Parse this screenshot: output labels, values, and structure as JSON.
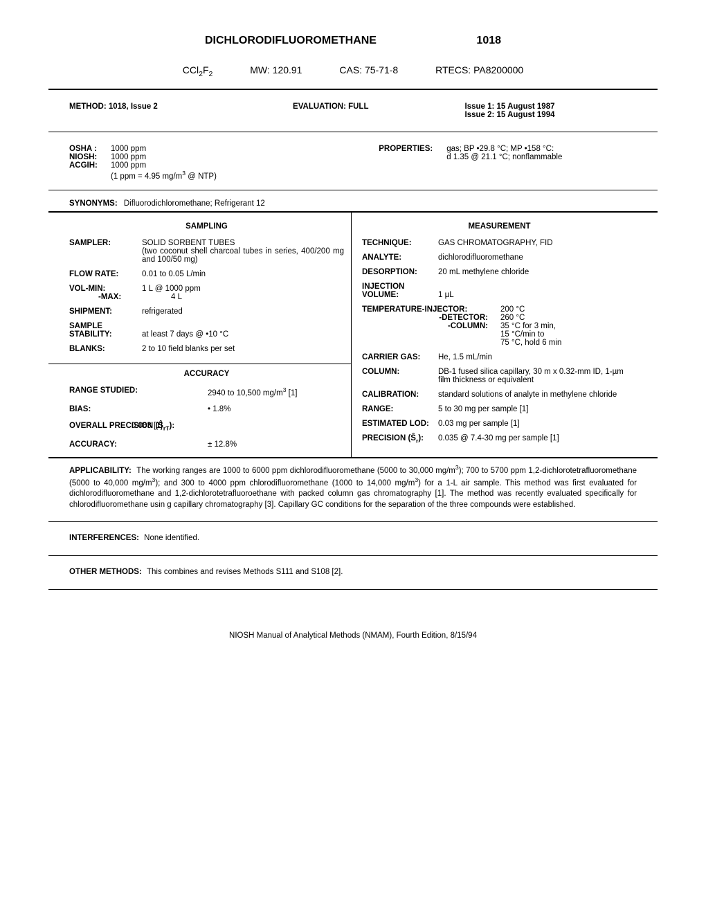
{
  "header": {
    "title": "DICHLORODIFLUOROMETHANE",
    "number": "1018",
    "formula_html": "CCl<sub>2</sub>F<sub>2</sub>",
    "mw": "MW:  120.91",
    "cas": "CAS: 75-71-8",
    "rtecs": "RTECS: PA8200000"
  },
  "method_row": {
    "method": "METHOD: 1018, Issue 2",
    "evaluation": "EVALUATION:  FULL",
    "issue1": "Issue 1:  15 August 1987",
    "issue2": "Issue 2:  15 August 1994"
  },
  "limits": {
    "osha_label": "OSHA :",
    "osha_val": "1000 ppm",
    "niosh_label": "NIOSH:",
    "niosh_val": "1000 ppm",
    "acgih_label": "ACGIH:",
    "acgih_val": "1000 ppm",
    "conv_html": "(1 ppm = 4.95 mg/m<sup>3</sup> @ NTP)"
  },
  "properties": {
    "label": "PROPERTIES:",
    "line1": "gas; BP •29.8 °C; MP •158 °C:",
    "line2": "d 1.35 @ 21.1 °C; nonflammable"
  },
  "synonyms": {
    "label": "SYNONYMS:",
    "value": "Difluorodichloromethane; Refrigerant 12"
  },
  "sampling": {
    "head": "SAMPLING",
    "sampler_k": "SAMPLER:",
    "sampler_v": "SOLID SORBENT TUBES",
    "sampler_v2": "(two coconut shell charcoal tubes in series, 400/200 mg and 100/50 mg)",
    "flow_k": "FLOW RATE:",
    "flow_v": "0.01 to 0.05 L/min",
    "volmin_k": "VOL-MIN:",
    "volmin_v": "1 L @ 1000 ppm",
    "volmax_k": "-MAX:",
    "volmax_v": "4 L",
    "ship_k": "SHIPMENT:",
    "ship_v": "refrigerated",
    "stab_k1": "SAMPLE",
    "stab_k2": "STABILITY:",
    "stab_v": "at least 7 days @ •10 °C",
    "blanks_k": "BLANKS:",
    "blanks_v": "2 to 10 field blanks per set"
  },
  "accuracy": {
    "head": "ACCURACY",
    "range_k": "RANGE STUDIED:",
    "range_v_html": "2940 to 10,500 mg/m<sup>3</sup> [1]",
    "bias_k": "BIAS:",
    "bias_v": "• 1.8%",
    "prec_k_html": "OVERALL PRECISION (Ŝ<sub>rT</sub>):",
    "prec_v": "0.063 [1]",
    "acc_k": "ACCURACY:",
    "acc_v": "± 12.8%"
  },
  "measurement": {
    "head": "MEASUREMENT",
    "tech_k": "TECHNIQUE:",
    "tech_v": "GAS CHROMATOGRAPHY, FID",
    "analyte_k": "ANALYTE:",
    "analyte_v": "dichlorodifluoromethane",
    "desorp_k": "DESORPTION:",
    "desorp_v": "20 mL methylene chloride",
    "inj_k1": "INJECTION",
    "inj_k2": "VOLUME:",
    "inj_v": "1 µL",
    "temp_inj_k": "TEMPERATURE-INJECTOR:",
    "temp_inj_v": "200 °C",
    "temp_det_k": "-DETECTOR:",
    "temp_det_v": "260 °C",
    "temp_col_k": "-COLUMN:",
    "temp_col_v1": "35 °C for 3 min,",
    "temp_col_v2": "15 °C/min to",
    "temp_col_v3": "75 °C, hold 6 min",
    "carrier_k": "CARRIER GAS:",
    "carrier_v": "He, 1.5 mL/min",
    "col_k": "COLUMN:",
    "col_v": "DB-1 fused silica capillary, 30 m x 0.32-mm ID, 1-µm film thickness or equivalent",
    "cal_k": "CALIBRATION:",
    "cal_v": "standard solutions of analyte in methylene chloride",
    "range_k": "RANGE:",
    "range_v": "5 to 30 mg per sample [1]",
    "lod_k": "ESTIMATED LOD:",
    "lod_v": "0.03 mg per sample [1]",
    "prec_k_html": "PRECISION (Ŝ<sub>r</sub>):",
    "prec_v": "0.035 @ 7.4-30 mg per sample [1]"
  },
  "applicability": {
    "label": "APPLICABILITY:",
    "text_html": "The working ranges are 1000 to 6000 ppm dichlorodifluoromethane (5000 to 30,000 mg/m<sup>3</sup>); 700 to 5700 ppm 1,2-dichlorotetrafluoromethane (5000 to 40,000 mg/m<sup>3</sup>); and 300 to 4000 ppm chlorodifluoromethane (1000 to 14,000 mg/m<sup>3</sup>) for a 1-L air sample.  This method was first evaluated for dichlorodifluoromethane and 1,2-dichlorotetrafluoroethane with packed column gas chromatography [1].  The method was recently evaluated specifically for chlorodifluoromethane usin g capillary chromatography [3].  Capillary GC conditions for the separation of the three compounds were established."
  },
  "interferences": {
    "label": "INTERFERENCES:",
    "text": "None identified."
  },
  "other_methods": {
    "label": "OTHER METHODS:",
    "text": "This combines and revises Methods S111 and S108 [2]."
  },
  "footer": "NIOSH Manual of Analytical Methods (NMAM), Fourth Edition, 8/15/94"
}
